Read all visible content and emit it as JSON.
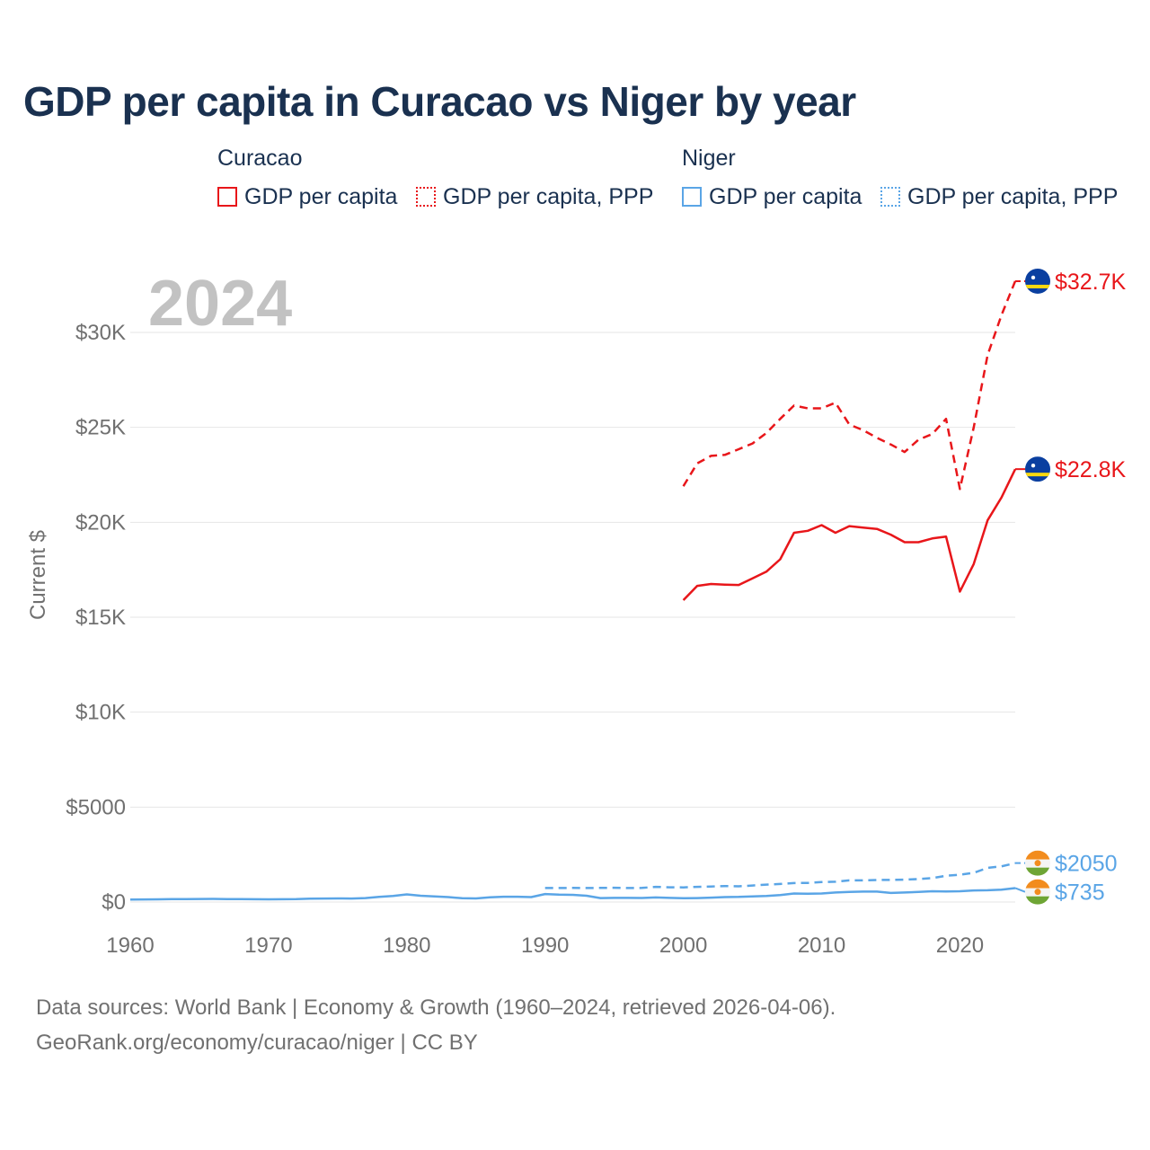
{
  "chart_data": {
    "type": "line",
    "title": "GDP per capita in Curacao vs Niger by year",
    "year_label": "2024",
    "ylabel": "Current $",
    "xlim": [
      1960,
      2024
    ],
    "ylim": [
      0,
      33000
    ],
    "x_ticks": [
      1960,
      1970,
      1980,
      1990,
      2000,
      2010,
      2020
    ],
    "y_ticks": [
      {
        "value": 0,
        "label": "$0"
      },
      {
        "value": 5000,
        "label": "$5000"
      },
      {
        "value": 10000,
        "label": "$10K"
      },
      {
        "value": 15000,
        "label": "$15K"
      },
      {
        "value": 20000,
        "label": "$20K"
      },
      {
        "value": 25000,
        "label": "$25K"
      },
      {
        "value": 30000,
        "label": "$30K"
      }
    ],
    "legend": [
      {
        "group": "Curacao",
        "items": [
          {
            "label": "GDP per capita",
            "style": "solid",
            "color": "#e8161a"
          },
          {
            "label": "GDP per capita, PPP",
            "style": "dotted",
            "color": "#e8161a"
          }
        ]
      },
      {
        "group": "Niger",
        "items": [
          {
            "label": "GDP per capita",
            "style": "solid",
            "color": "#5aa5e6"
          },
          {
            "label": "GDP per capita, PPP",
            "style": "dotted",
            "color": "#5aa5e6"
          }
        ]
      }
    ],
    "series": [
      {
        "name": "Curacao GDP per capita, PPP",
        "country": "Curacao",
        "color": "#e8161a",
        "dash": "dashed",
        "end_label": "$32.7K",
        "flag": "curacao",
        "x": [
          2000,
          2001,
          2002,
          2003,
          2004,
          2005,
          2006,
          2007,
          2008,
          2009,
          2010,
          2011,
          2012,
          2013,
          2014,
          2015,
          2016,
          2017,
          2018,
          2019,
          2020,
          2021,
          2022,
          2023,
          2024
        ],
        "values": [
          21900,
          23100,
          23500,
          23550,
          23850,
          24150,
          24700,
          25450,
          26150,
          26000,
          26000,
          26300,
          25150,
          24850,
          24450,
          24100,
          23700,
          24350,
          24650,
          25450,
          21750,
          25000,
          28800,
          30900,
          32700
        ]
      },
      {
        "name": "Curacao GDP per capita",
        "country": "Curacao",
        "color": "#e8161a",
        "dash": "solid",
        "end_label": "$22.8K",
        "flag": "curacao",
        "x": [
          2000,
          2001,
          2002,
          2003,
          2004,
          2005,
          2006,
          2007,
          2008,
          2009,
          2010,
          2011,
          2012,
          2013,
          2014,
          2015,
          2016,
          2017,
          2018,
          2019,
          2020,
          2021,
          2022,
          2023,
          2024
        ],
        "values": [
          15900,
          16650,
          16750,
          16720,
          16700,
          17050,
          17400,
          18050,
          19450,
          19550,
          19850,
          19450,
          19800,
          19720,
          19650,
          19350,
          18950,
          18950,
          19150,
          19250,
          16350,
          17800,
          20100,
          21300,
          22800
        ]
      },
      {
        "name": "Niger GDP per capita, PPP",
        "country": "Niger",
        "color": "#5aa5e6",
        "dash": "dashed",
        "end_label": "$2050",
        "flag": "niger",
        "x": [
          1990,
          1991,
          1992,
          1993,
          1994,
          1995,
          1996,
          1997,
          1998,
          1999,
          2000,
          2001,
          2002,
          2003,
          2004,
          2005,
          2006,
          2007,
          2008,
          2009,
          2010,
          2011,
          2012,
          2013,
          2014,
          2015,
          2016,
          2017,
          2018,
          2019,
          2020,
          2021,
          2022,
          2023,
          2024
        ],
        "values": [
          740,
          740,
          745,
          740,
          745,
          750,
          740,
          745,
          800,
          775,
          770,
          800,
          820,
          840,
          830,
          870,
          920,
          950,
          1000,
          1010,
          1050,
          1070,
          1140,
          1140,
          1160,
          1170,
          1180,
          1210,
          1260,
          1380,
          1440,
          1540,
          1800,
          1880,
          2050
        ]
      },
      {
        "name": "Niger GDP per capita",
        "country": "Niger",
        "color": "#5aa5e6",
        "dash": "solid",
        "end_label": "$735",
        "flag": "niger",
        "x": [
          1960,
          1961,
          1962,
          1963,
          1964,
          1965,
          1966,
          1967,
          1968,
          1969,
          1970,
          1971,
          1972,
          1973,
          1974,
          1975,
          1976,
          1977,
          1978,
          1979,
          1980,
          1981,
          1982,
          1983,
          1984,
          1985,
          1986,
          1987,
          1988,
          1989,
          1990,
          1991,
          1992,
          1993,
          1994,
          1995,
          1996,
          1997,
          1998,
          1999,
          2000,
          2001,
          2002,
          2003,
          2004,
          2005,
          2006,
          2007,
          2008,
          2009,
          2010,
          2011,
          2012,
          2013,
          2014,
          2015,
          2016,
          2017,
          2018,
          2019,
          2020,
          2021,
          2022,
          2023,
          2024
        ],
        "values": [
          130,
          135,
          140,
          150,
          155,
          160,
          165,
          155,
          150,
          145,
          140,
          145,
          150,
          175,
          185,
          190,
          185,
          210,
          270,
          320,
          400,
          330,
          300,
          260,
          200,
          190,
          250,
          280,
          280,
          260,
          420,
          390,
          380,
          330,
          210,
          220,
          220,
          215,
          240,
          220,
          200,
          210,
          230,
          260,
          270,
          300,
          320,
          370,
          450,
          440,
          450,
          500,
          530,
          550,
          550,
          480,
          500,
          530,
          570,
          560,
          570,
          610,
          620,
          650,
          735
        ]
      }
    ]
  },
  "legend_titles": {
    "curacao": "Curacao",
    "niger": "Niger"
  },
  "sources": {
    "line1": "Data sources: World Bank | Economy & Growth (1960–2024, retrieved 2026-04-06).",
    "line2": "GeoRank.org/economy/curacao/niger | CC BY"
  }
}
